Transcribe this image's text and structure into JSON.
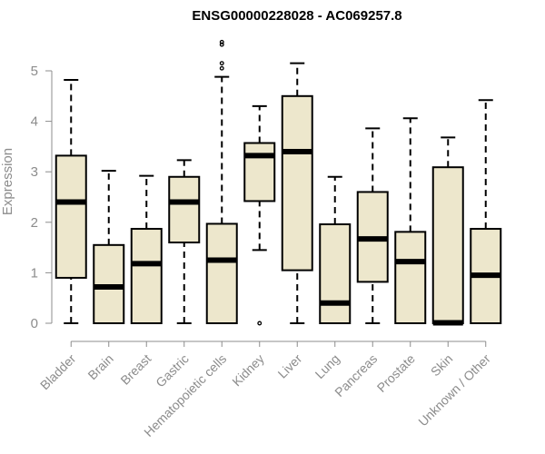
{
  "chart_data": {
    "type": "boxplot",
    "title": "ENSG00000228028 - AC069257.8",
    "xlabel": "",
    "ylabel": "Expression",
    "ylim": [
      0,
      5.6
    ],
    "yticks": [
      0,
      1,
      2,
      3,
      4,
      5
    ],
    "box_fill": "#ede7cc",
    "categories": [
      "Bladder",
      "Brain",
      "Breast",
      "Gastric",
      "Hematopoietic cells",
      "Kidney",
      "Liver",
      "Lung",
      "Pancreas",
      "Prostate",
      "Skin",
      "Unknown / Other"
    ],
    "series": [
      {
        "category": "Bladder",
        "min": 0,
        "q1": 0.9,
        "median": 2.4,
        "q3": 3.32,
        "max": 4.82,
        "outliers": []
      },
      {
        "category": "Brain",
        "min": 0,
        "q1": 0,
        "median": 0.72,
        "q3": 1.55,
        "max": 3.02,
        "outliers": []
      },
      {
        "category": "Breast",
        "min": 0,
        "q1": 0,
        "median": 1.18,
        "q3": 1.87,
        "max": 2.92,
        "outliers": []
      },
      {
        "category": "Gastric",
        "min": 0,
        "q1": 1.6,
        "median": 2.4,
        "q3": 2.9,
        "max": 3.23,
        "outliers": []
      },
      {
        "category": "Hematopoietic cells",
        "min": 0,
        "q1": 0,
        "median": 1.25,
        "q3": 1.97,
        "max": 4.88,
        "outliers": [
          5.05,
          5.15,
          5.52,
          5.57
        ]
      },
      {
        "category": "Kidney",
        "min": 1.45,
        "q1": 2.42,
        "median": 3.32,
        "q3": 3.57,
        "max": 4.3,
        "outliers": [
          0
        ]
      },
      {
        "category": "Liver",
        "min": 0,
        "q1": 1.05,
        "median": 3.4,
        "q3": 4.5,
        "max": 5.15,
        "outliers": []
      },
      {
        "category": "Lung",
        "min": 0,
        "q1": 0,
        "median": 0.4,
        "q3": 1.96,
        "max": 2.9,
        "outliers": []
      },
      {
        "category": "Pancreas",
        "min": 0,
        "q1": 0.82,
        "median": 1.67,
        "q3": 2.6,
        "max": 3.86,
        "outliers": []
      },
      {
        "category": "Prostate",
        "min": 0,
        "q1": 0,
        "median": 1.22,
        "q3": 1.81,
        "max": 4.06,
        "outliers": []
      },
      {
        "category": "Skin",
        "min": 0,
        "q1": 0,
        "median": 0.01,
        "q3": 3.09,
        "max": 3.68,
        "outliers": []
      },
      {
        "category": "Unknown / Other",
        "min": 0,
        "q1": 0,
        "median": 0.95,
        "q3": 1.87,
        "max": 4.42,
        "outliers": []
      }
    ]
  }
}
